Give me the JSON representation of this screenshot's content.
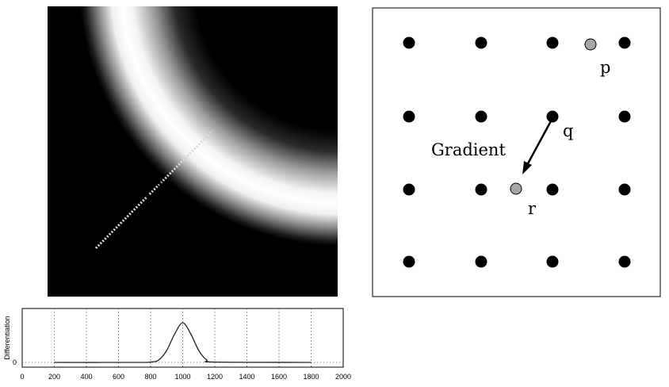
{
  "grid_diagram": {
    "labels": {
      "p": "p",
      "q": "q",
      "r": "r",
      "gradient": "Gradient"
    }
  },
  "profile_plot": {
    "ylabel": "Differentiation",
    "y_tick": "0",
    "x_ticks": [
      "0",
      "200",
      "400",
      "600",
      "800",
      "1000",
      "1200",
      "1400",
      "1600",
      "1800",
      "2000"
    ]
  },
  "chart_data": {
    "type": "line",
    "title": "",
    "xlabel": "",
    "ylabel": "Differentiation",
    "xlim": [
      0,
      2000
    ],
    "grid": true,
    "series": [
      {
        "x": [
          200,
          700,
          800,
          850,
          900,
          950,
          1000,
          1050,
          1100,
          1150,
          1200,
          1800
        ],
        "y": [
          0,
          0,
          0.01,
          0.06,
          0.3,
          0.72,
          1.0,
          0.72,
          0.3,
          0.06,
          0.01,
          0
        ]
      }
    ]
  }
}
